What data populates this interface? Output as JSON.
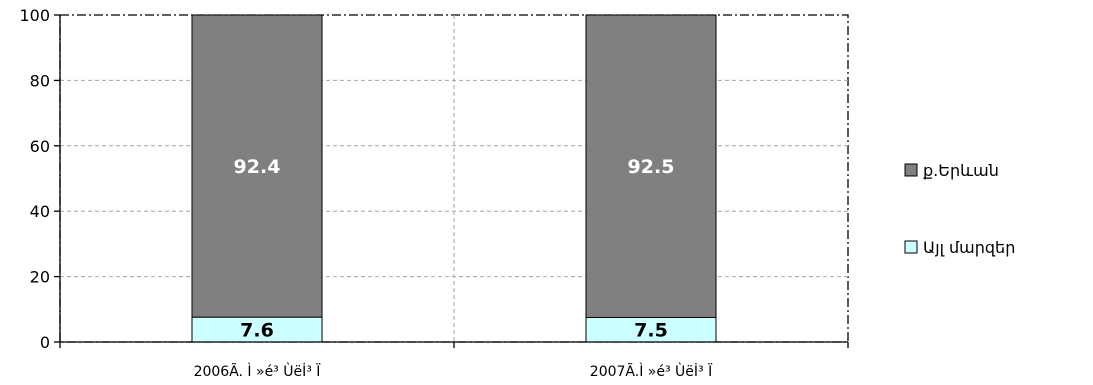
{
  "chart_data": {
    "type": "bar",
    "stacked": true,
    "percent_stacked": true,
    "categories": [
      "2006Ã. Ì »é³ Ùëİ³ Ï",
      "2007Ã.Ì »é³ Ùëİ³ Ï"
    ],
    "series": [
      {
        "name": "Այլ մարզեր",
        "values": [
          7.6,
          7.5
        ],
        "color": "#ccffff",
        "label_color": "#000000"
      },
      {
        "name": "ք.Երևան",
        "values": [
          92.4,
          92.5
        ],
        "color": "#808080",
        "label_color": "#ffffff"
      }
    ],
    "ylim": [
      0,
      100
    ],
    "yticks": [
      "0",
      "20",
      "40",
      "60",
      "80",
      "100"
    ],
    "data_labels": [
      "7.6",
      "92.4",
      "7.5",
      "92.5"
    ],
    "grid": true,
    "legend_position": "right",
    "legend_order": [
      "ք.Երևան",
      "Այլ մարզեր"
    ]
  }
}
